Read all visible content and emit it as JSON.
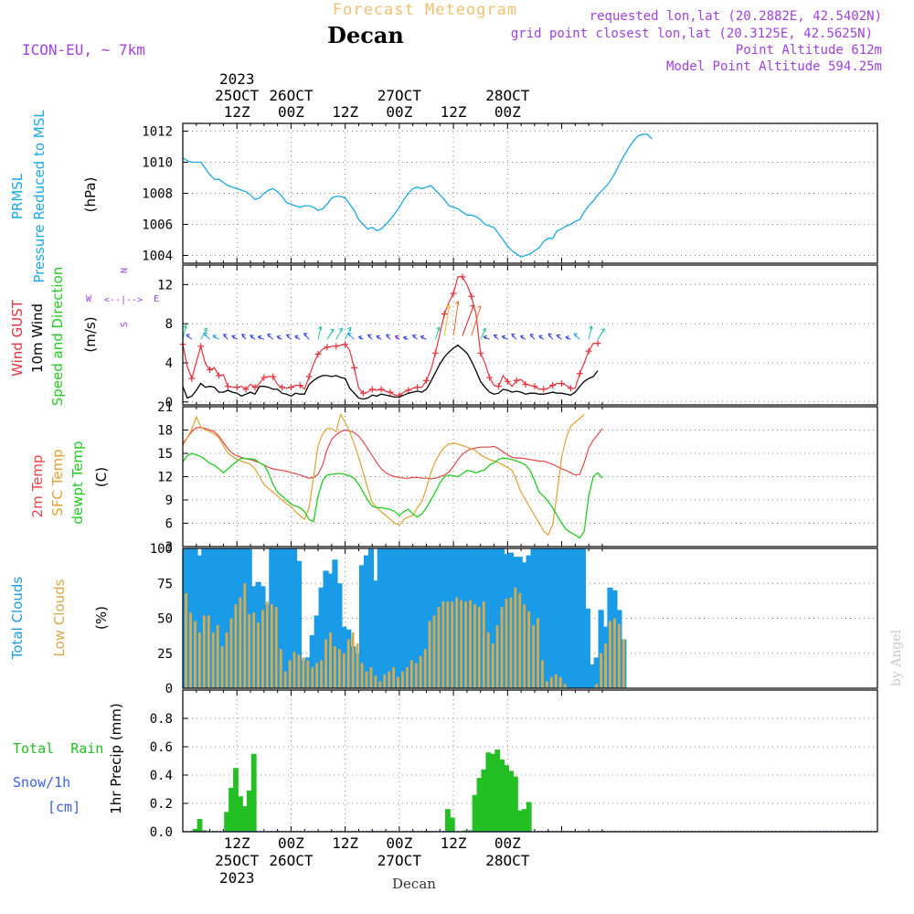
{
  "header": {
    "title": "Forecast Meteogram",
    "location": "Decan",
    "model": "ICON-EU, ~ 7km",
    "requested": "requested lon,lat (20.2882E, 42.5402N)",
    "grid_point": "grid point closest lon,lat (20.3125E, 42.5625N)",
    "point_altitude": "Point Altitude 612m",
    "model_altitude": "Model Point Altitude 594.25m",
    "footer_location": "Decan",
    "watermark": "by Angel"
  },
  "time_axis": {
    "top": [
      {
        "line1": "2023",
        "line2": "25OCT",
        "line3": "12Z"
      },
      {
        "line1": "",
        "line2": "26OCT",
        "line3": "00Z"
      },
      {
        "line1": "",
        "line2": "",
        "line3": "12Z"
      },
      {
        "line1": "",
        "line2": "27OCT",
        "line3": "00Z"
      },
      {
        "line1": "",
        "line2": "",
        "line3": "12Z"
      },
      {
        "line1": "",
        "line2": "28OCT",
        "line3": "00Z"
      }
    ],
    "bottom": [
      {
        "line1": "12Z",
        "line2": "25OCT",
        "line3": "2023"
      },
      {
        "line1": "00Z",
        "line2": "26OCT",
        "line3": ""
      },
      {
        "line1": "12Z",
        "line2": "",
        "line3": ""
      },
      {
        "line1": "00Z",
        "line2": "27OCT",
        "line3": ""
      },
      {
        "line1": "12Z",
        "line2": "",
        "line3": ""
      },
      {
        "line1": "00Z",
        "line2": "28OCT",
        "line3": ""
      }
    ]
  },
  "colors": {
    "pressure": "#1aa7e8",
    "gust": "#e8323c",
    "wind": "#000000",
    "temp2m": "#e84646",
    "sfc": "#e0a030",
    "dewpt": "#22cc22",
    "total_clouds": "#1a9be8",
    "low_clouds": "#d8aa4a",
    "rain": "#22c022",
    "snow": "#3a5ee8",
    "purple": "#a040e0",
    "title": "#f0c070"
  },
  "chart_data": [
    {
      "type": "line",
      "panel": "pressure",
      "label_lines": [
        "PRMSL",
        "Pressure Reduced to MSL"
      ],
      "unit": "(hPa)",
      "x_start_hours": 6,
      "x_step_hours": 1,
      "ylim": [
        1003.5,
        1012.5
      ],
      "yticks": [
        1004,
        1006,
        1008,
        1010,
        1012
      ],
      "series": [
        {
          "values": [
            1010.3,
            1010.1,
            1010.0,
            1010.0,
            1010.0,
            1009.6,
            1009.2,
            1008.9,
            1008.9,
            1008.7,
            1008.5,
            1008.4,
            1008.3,
            1008.2,
            1008.1,
            1007.9,
            1007.6,
            1007.7,
            1008.0,
            1008.2,
            1008.3,
            1008.1,
            1007.8,
            1007.4,
            1007.3,
            1007.2,
            1007.1,
            1007.2,
            1007.2,
            1007.1,
            1006.9,
            1007.0,
            1007.3,
            1007.7,
            1007.8,
            1007.8,
            1007.7,
            1007.3,
            1006.9,
            1006.3,
            1006.0,
            1005.7,
            1005.8,
            1005.6,
            1005.7,
            1006.0,
            1006.3,
            1006.7,
            1007.1,
            1007.6,
            1008.0,
            1008.3,
            1008.4,
            1008.3,
            1008.4,
            1008.5,
            1008.2,
            1007.9,
            1007.6,
            1007.2,
            1007.1,
            1007.0,
            1006.8,
            1006.6,
            1006.6,
            1006.5,
            1006.3,
            1006.0,
            1005.9,
            1005.8,
            1005.4,
            1005.0,
            1004.6,
            1004.3,
            1004.1,
            1003.9,
            1004.0,
            1004.1,
            1004.3,
            1004.5,
            1004.9,
            1005.1,
            1005.1,
            1005.6,
            1005.7,
            1005.9,
            1006.0,
            1006.2,
            1006.3,
            1006.8,
            1007.2,
            1007.5,
            1007.9,
            1008.2,
            1008.5,
            1008.9,
            1009.4,
            1010.0,
            1010.5,
            1011.0,
            1011.4,
            1011.7,
            1011.8,
            1011.8,
            1011.5
          ]
        }
      ]
    },
    {
      "type": "line",
      "panel": "wind",
      "label_gust": "Wind GUST",
      "label_wind": "10m Wind",
      "label_dir": "Speed and Direction",
      "unit": "(m/s)",
      "compass": {
        "n": "N",
        "s": "S",
        "w": "W",
        "e": "E"
      },
      "x_start_hours": 6,
      "x_step_hours": 1,
      "ylim": [
        -0.3,
        14.0
      ],
      "yticks": [
        0,
        4,
        8,
        12
      ],
      "series": [
        {
          "name": "Wind GUST",
          "values": [
            5.9,
            3.6,
            2.4,
            4.1,
            5.7,
            3.9,
            3.3,
            3.5,
            2.7,
            2.8,
            1.6,
            1.5,
            1.5,
            1.6,
            1.3,
            1.8,
            1.5,
            1.9,
            2.5,
            2.6,
            2.6,
            1.8,
            1.5,
            1.4,
            1.5,
            1.7,
            1.7,
            1.3,
            2.6,
            3.9,
            4.9,
            5.4,
            5.6,
            5.7,
            5.7,
            5.8,
            5.9,
            5.3,
            3.5,
            1.4,
            0.9,
            1.0,
            1.3,
            1.2,
            1.3,
            1.1,
            1.0,
            0.7,
            0.7,
            1.0,
            1.2,
            1.4,
            1.5,
            1.5,
            2.2,
            3.3,
            5.0,
            7.0,
            9.0,
            10.2,
            11.1,
            12.8,
            12.8,
            12.0,
            10.8,
            9.0,
            5.0,
            4.0,
            2.5,
            1.7,
            1.6,
            2.7,
            2.1,
            1.6,
            2.2,
            2.3,
            1.8,
            1.7,
            1.6,
            1.3,
            1.3,
            1.4,
            1.7,
            1.9,
            1.9,
            1.7,
            1.4,
            1.4,
            2.9,
            4.0,
            5.2,
            6.0,
            6.0
          ]
        },
        {
          "name": "10m Wind",
          "values": [
            1.6,
            0.4,
            0.6,
            1.2,
            1.9,
            1.5,
            1.6,
            1.5,
            1.0,
            1.0,
            1.2,
            1.0,
            0.9,
            0.6,
            0.8,
            1.0,
            0.8,
            1.6,
            1.6,
            1.5,
            1.3,
            1.3,
            0.9,
            0.8,
            0.6,
            0.9,
            0.8,
            0.8,
            1.8,
            2.2,
            2.5,
            2.7,
            2.7,
            2.6,
            2.7,
            2.5,
            2.4,
            1.4,
            0.9,
            0.4,
            0.3,
            0.4,
            0.7,
            0.6,
            0.8,
            0.7,
            0.6,
            0.5,
            0.5,
            0.7,
            0.9,
            1.0,
            1.1,
            1.0,
            1.3,
            2.1,
            3.0,
            3.9,
            4.6,
            5.1,
            5.5,
            5.8,
            5.4,
            5.0,
            4.2,
            3.2,
            2.1,
            1.5,
            1.0,
            0.8,
            0.9,
            1.3,
            1.2,
            1.0,
            1.1,
            1.0,
            0.8,
            0.9,
            0.9,
            0.8,
            0.8,
            0.9,
            1.0,
            0.9,
            0.9,
            0.8,
            0.7,
            1.0,
            1.6,
            2.1,
            2.4,
            2.6,
            3.2
          ]
        }
      ]
    },
    {
      "type": "line",
      "panel": "temperature",
      "label_lines": [
        "2m Temp",
        "SFC Temp",
        "dewpt Temp"
      ],
      "unit": "(C)",
      "x_start_hours": 6,
      "x_step_hours": 1,
      "ylim": [
        3.0,
        21.0
      ],
      "yticks": [
        3,
        6,
        9,
        12,
        15,
        18,
        21
      ],
      "series": [
        {
          "name": "2m Temp",
          "values": [
            16.3,
            17.0,
            17.8,
            18.3,
            18.3,
            18.2,
            18.0,
            17.8,
            17.2,
            16.4,
            15.6,
            15.0,
            14.7,
            14.5,
            14.3,
            14.2,
            14.0,
            13.8,
            13.5,
            13.2,
            13.0,
            12.9,
            12.8,
            12.7,
            12.5,
            12.4,
            12.2,
            12.0,
            11.8,
            11.9,
            12.3,
            13.5,
            15.5,
            16.8,
            17.4,
            17.8,
            18.0,
            17.9,
            17.7,
            17.2,
            16.5,
            15.6,
            14.7,
            13.8,
            13.0,
            12.5,
            12.2,
            12.0,
            11.9,
            11.8,
            11.8,
            11.9,
            11.9,
            11.8,
            11.8,
            11.7,
            11.8,
            12.0,
            12.2,
            12.6,
            13.3,
            14.2,
            14.9,
            15.3,
            15.6,
            15.7,
            15.8,
            15.8,
            15.8,
            15.9,
            15.6,
            15.2,
            14.8,
            14.5,
            14.4,
            14.4,
            14.3,
            14.2,
            14.1,
            14.0,
            14.0,
            13.8,
            13.6,
            13.3,
            13.0,
            12.8,
            12.5,
            12.2,
            12.3,
            13.8,
            15.7,
            16.7,
            17.4,
            18.2
          ]
        },
        {
          "name": "SFC Temp",
          "values": [
            16.0,
            17.0,
            18.1,
            19.7,
            18.4,
            18.0,
            17.8,
            17.5,
            17.0,
            16.0,
            15.0,
            14.6,
            14.2,
            14.0,
            13.8,
            13.6,
            13.0,
            12.0,
            11.0,
            10.5,
            10.0,
            9.5,
            9.0,
            8.5,
            8.2,
            7.5,
            7.0,
            6.5,
            8.0,
            12.0,
            16.0,
            17.5,
            18.2,
            18.2,
            17.8,
            20.0,
            19.0,
            17.8,
            16.2,
            14.5,
            12.5,
            10.5,
            8.7,
            8.0,
            7.5,
            7.0,
            6.5,
            6.0,
            5.8,
            6.5,
            6.8,
            7.0,
            8.0,
            8.8,
            10.5,
            12.5,
            14.0,
            15.0,
            15.8,
            16.2,
            16.3,
            16.2,
            16.0,
            15.8,
            15.6,
            15.3,
            14.8,
            14.5,
            14.2,
            14.0,
            13.8,
            13.5,
            13.2,
            12.8,
            11.5,
            10.0,
            9.0,
            8.0,
            7.0,
            6.0,
            5.0,
            4.5,
            5.8,
            10.0,
            14.5,
            17.0,
            18.5,
            19.0,
            19.5,
            20.0
          ]
        },
        {
          "name": "dewpt Temp",
          "values": [
            13.9,
            14.7,
            15.0,
            14.8,
            14.6,
            14.2,
            13.7,
            13.5,
            13.0,
            12.5,
            13.0,
            13.5,
            14.0,
            14.4,
            14.3,
            14.3,
            14.2,
            13.8,
            13.5,
            12.5,
            11.0,
            10.0,
            9.5,
            9.0,
            8.5,
            8.2,
            8.0,
            7.5,
            6.5,
            6.2,
            9.5,
            11.5,
            12.2,
            12.3,
            12.4,
            12.4,
            12.3,
            12.1,
            11.8,
            11.0,
            10.0,
            9.0,
            8.2,
            8.0,
            8.0,
            7.9,
            7.8,
            7.5,
            7.0,
            7.5,
            7.8,
            7.2,
            6.8,
            7.2,
            8.0,
            9.0,
            10.0,
            11.2,
            12.0,
            12.2,
            12.1,
            12.0,
            12.4,
            12.8,
            12.7,
            12.5,
            12.7,
            12.9,
            13.5,
            13.8,
            14.2,
            14.4,
            14.3,
            14.2,
            14.0,
            13.8,
            13.5,
            12.8,
            11.5,
            10.0,
            9.5,
            8.8,
            8.0,
            7.0,
            6.0,
            5.2,
            4.8,
            4.5,
            4.1,
            5.0,
            9.5,
            12.0,
            12.5,
            11.8
          ]
        }
      ]
    },
    {
      "type": "bar",
      "panel": "clouds",
      "label_total": "Total Clouds",
      "label_low": "Low Clouds",
      "unit": "(%)",
      "x_start_hours": 6,
      "x_step_hours": 1,
      "ylim": [
        0,
        100
      ],
      "yticks": [
        0,
        25,
        50,
        75,
        100
      ],
      "series": [
        {
          "name": "Total Clouds",
          "values": [
            100,
            100,
            100,
            95,
            100,
            100,
            100,
            100,
            100,
            100,
            100,
            100,
            100,
            100,
            100,
            73,
            76,
            73,
            60,
            100,
            100,
            100,
            100,
            100,
            100,
            91,
            20,
            22,
            38,
            52,
            72,
            84,
            82,
            92,
            75,
            44,
            42,
            30,
            25,
            88,
            95,
            100,
            77,
            100,
            100,
            100,
            100,
            100,
            100,
            100,
            100,
            100,
            100,
            100,
            100,
            100,
            100,
            100,
            100,
            100,
            100,
            100,
            100,
            100,
            100,
            100,
            100,
            100,
            100,
            100,
            100,
            96,
            97,
            94,
            94,
            90,
            95,
            100,
            100,
            100,
            100,
            100,
            100,
            100,
            100,
            100,
            100,
            100,
            100,
            57,
            17,
            22,
            56,
            44,
            72,
            70,
            56,
            35
          ]
        },
        {
          "name": "Low Clouds",
          "values": [
            68,
            54,
            48,
            40,
            52,
            52,
            40,
            45,
            30,
            40,
            50,
            60,
            65,
            75,
            53,
            54,
            47,
            56,
            62,
            60,
            58,
            28,
            12,
            20,
            26,
            24,
            22,
            20,
            15,
            18,
            20,
            35,
            40,
            30,
            28,
            25,
            35,
            40,
            32,
            18,
            12,
            15,
            9,
            5,
            10,
            12,
            15,
            8,
            12,
            15,
            20,
            18,
            23,
            28,
            48,
            52,
            58,
            62,
            62,
            62,
            65,
            63,
            62,
            63,
            60,
            58,
            62,
            40,
            32,
            45,
            58,
            64,
            65,
            72,
            68,
            60,
            55,
            45,
            50,
            20,
            5,
            8,
            10,
            8,
            3,
            0,
            0,
            0,
            0,
            0,
            0,
            3,
            25,
            32,
            48,
            50,
            46,
            35
          ]
        }
      ]
    },
    {
      "type": "bar",
      "panel": "precip",
      "label_rain": "Total  Rain",
      "label_snow": "Snow/1h",
      "label_snow_unit": "[cm]",
      "unit": "1hr Precip (mm)",
      "x_start_hours": 6,
      "x_step_hours": 1,
      "ylim": [
        0,
        1.0
      ],
      "yticks": [
        0.0,
        0.2,
        0.4,
        0.6,
        0.8
      ],
      "series": [
        {
          "name": "Rain",
          "values": [
            0,
            0,
            0.02,
            0.09,
            0.01,
            0,
            0,
            0,
            0,
            0.14,
            0.31,
            0.45,
            0.25,
            0.18,
            0.29,
            0.55,
            0,
            0,
            0,
            0,
            0,
            0,
            0,
            0,
            0,
            0,
            0,
            0,
            0,
            0,
            0,
            0,
            0,
            0,
            0,
            0,
            0,
            0,
            0,
            0,
            0,
            0,
            0,
            0,
            0,
            0,
            0,
            0,
            0,
            0,
            0,
            0,
            0,
            0,
            0,
            0,
            0,
            0,
            0.16,
            0.1,
            0,
            0,
            0.01,
            0.01,
            0.26,
            0.38,
            0.44,
            0.56,
            0.55,
            0.58,
            0.51,
            0.47,
            0.43,
            0.39,
            0.15,
            0.16,
            0.21,
            0,
            0,
            0,
            0,
            0,
            0,
            0,
            0,
            0,
            0,
            0,
            0,
            0,
            0,
            0,
            0,
            0,
            0,
            0,
            0,
            0
          ]
        },
        {
          "name": "Snow",
          "values": []
        }
      ]
    }
  ]
}
